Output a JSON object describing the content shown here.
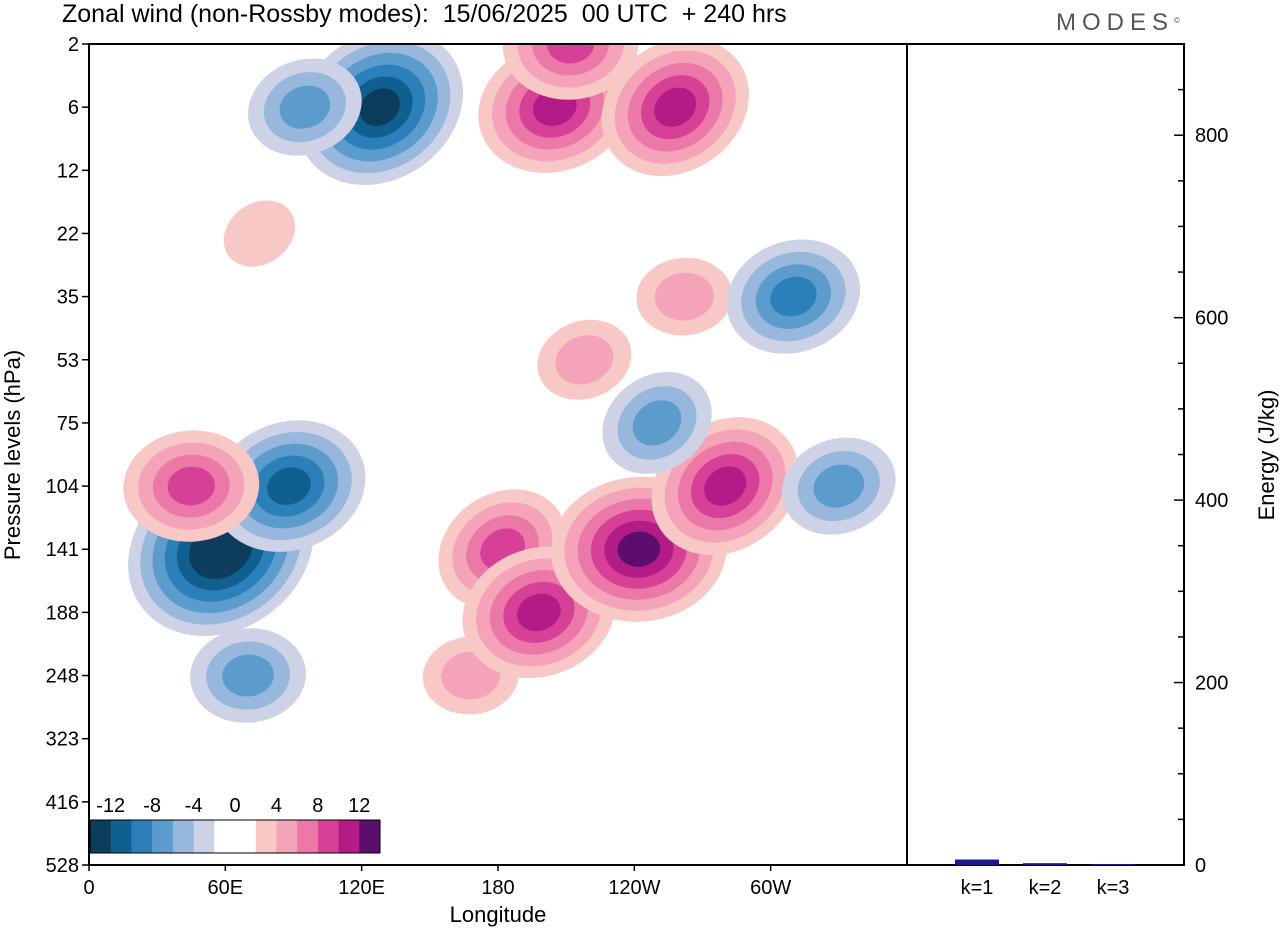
{
  "title": "Zonal wind (non-Rossby modes):  15/06/2025  00 UTC  + 240 hrs",
  "logo": "MODES",
  "colors": {
    "negative": [
      "#0c3d5c",
      "#0f5f91",
      "#2b80ba",
      "#5b9ccc",
      "#97b7dc",
      "#cdd2e6"
    ],
    "positive": [
      "#f8c8c6",
      "#f4a3b9",
      "#ec78a8",
      "#d64197",
      "#b31c87",
      "#5c0e6e"
    ],
    "energy_bar": "#1a1a8c"
  },
  "chart_data": [
    {
      "type": "heatmap",
      "title": "Zonal wind (non-Rossby modes):  15/06/2025  00 UTC  + 240 hrs",
      "xlabel": "Longitude",
      "ylabel": "Pressure levels (hPa)",
      "x_ticks": [
        "0",
        "60E",
        "120E",
        "180",
        "120W",
        "60W"
      ],
      "x_range": [
        0,
        360
      ],
      "y_ticks": [
        "2",
        "6",
        "12",
        "22",
        "35",
        "53",
        "75",
        "104",
        "141",
        "188",
        "248",
        "323",
        "416",
        "528"
      ],
      "colorbar": {
        "labels": [
          "-12",
          "-8",
          "-4",
          "0",
          "4",
          "8",
          "12"
        ],
        "levels": [
          -14,
          -12,
          -10,
          -8,
          -6,
          -4,
          -2,
          2,
          4,
          6,
          8,
          10,
          12,
          14
        ]
      },
      "features": [
        {
          "lon": 58,
          "level": 141,
          "value": -14
        },
        {
          "lon": 88,
          "level": 104,
          "value": -10
        },
        {
          "lon": 70,
          "level": 248,
          "value": -6
        },
        {
          "lon": 128,
          "level": 6,
          "value": -12
        },
        {
          "lon": 95,
          "level": 6,
          "value": -6
        },
        {
          "lon": 168,
          "level": 248,
          "value": 4
        },
        {
          "lon": 182,
          "level": 141,
          "value": 8
        },
        {
          "lon": 198,
          "level": 188,
          "value": 10
        },
        {
          "lon": 242,
          "level": 141,
          "value": 12
        },
        {
          "lon": 280,
          "level": 104,
          "value": 10
        },
        {
          "lon": 205,
          "level": 6,
          "value": 10
        },
        {
          "lon": 212,
          "level": 2,
          "value": 8
        },
        {
          "lon": 258,
          "level": 6,
          "value": 10
        },
        {
          "lon": 218,
          "level": 53,
          "value": 4
        },
        {
          "lon": 262,
          "level": 35,
          "value": 4
        },
        {
          "lon": 250,
          "level": 75,
          "value": -6
        },
        {
          "lon": 310,
          "level": 35,
          "value": -8
        },
        {
          "lon": 45,
          "level": 104,
          "value": 8
        },
        {
          "lon": 75,
          "level": 22,
          "value": 2
        },
        {
          "lon": 330,
          "level": 104,
          "value": -6
        }
      ]
    },
    {
      "type": "bar",
      "categories": [
        "k=1",
        "k=2",
        "k=3"
      ],
      "values": [
        6,
        2,
        1
      ],
      "ylabel": "Energy (J/kg)",
      "ylim": [
        0,
        900
      ],
      "y_ticks": [
        "0",
        "200",
        "400",
        "600",
        "800"
      ]
    }
  ]
}
